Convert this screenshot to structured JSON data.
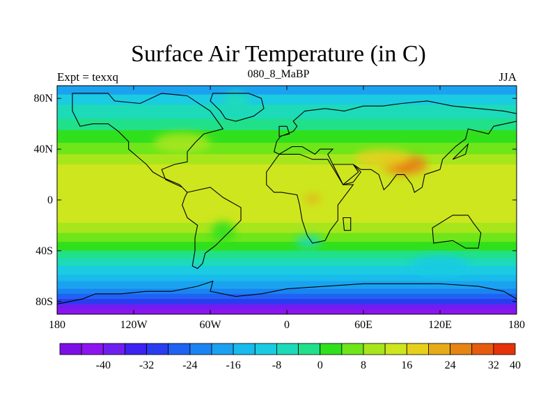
{
  "title": "Surface Air Temperature (in C)",
  "left_string": "Expt = texxq",
  "center_string": "080_8_MaBP",
  "right_string": "JJA",
  "map": {
    "projection": "cylindrical equidistant",
    "lon_range": [
      -180,
      180
    ],
    "lat_range": [
      -90,
      90
    ],
    "lon_ticks": [
      {
        "value": -180,
        "label": "180"
      },
      {
        "value": -120,
        "label": "120W"
      },
      {
        "value": -60,
        "label": "60W"
      },
      {
        "value": 0,
        "label": "0"
      },
      {
        "value": 60,
        "label": "60E"
      },
      {
        "value": 120,
        "label": "120E"
      },
      {
        "value": 180,
        "label": "180"
      }
    ],
    "lat_ticks": [
      {
        "value": 80,
        "label": "80N"
      },
      {
        "value": 40,
        "label": "40N"
      },
      {
        "value": 0,
        "label": "0"
      },
      {
        "value": -40,
        "label": "40S"
      },
      {
        "value": -80,
        "label": "80S"
      }
    ],
    "zonal_bands": [
      {
        "lat_from": 90,
        "lat_to": 83,
        "level": 7
      },
      {
        "lat_from": 83,
        "lat_to": 75,
        "level": 9
      },
      {
        "lat_from": 75,
        "lat_to": 64,
        "level": 10
      },
      {
        "lat_from": 64,
        "lat_to": 55,
        "level": 11
      },
      {
        "lat_from": 55,
        "lat_to": 45,
        "level": 12
      },
      {
        "lat_from": 45,
        "lat_to": 36,
        "level": 13
      },
      {
        "lat_from": 36,
        "lat_to": 28,
        "level": 14
      },
      {
        "lat_from": 28,
        "lat_to": -18,
        "level": 15
      },
      {
        "lat_from": -18,
        "lat_to": -26,
        "level": 14
      },
      {
        "lat_from": -26,
        "lat_to": -33,
        "level": 13
      },
      {
        "lat_from": -33,
        "lat_to": -40,
        "level": 12
      },
      {
        "lat_from": -40,
        "lat_to": -46,
        "level": 11
      },
      {
        "lat_from": -46,
        "lat_to": -52,
        "level": 10
      },
      {
        "lat_from": -52,
        "lat_to": -59,
        "level": 9
      },
      {
        "lat_from": -59,
        "lat_to": -64,
        "level": 8
      },
      {
        "lat_from": -64,
        "lat_to": -70,
        "level": 7
      },
      {
        "lat_from": -70,
        "lat_to": -74,
        "level": 6
      },
      {
        "lat_from": -74,
        "lat_to": -78,
        "level": 5
      },
      {
        "lat_from": -78,
        "lat_to": -82,
        "level": 4
      },
      {
        "lat_from": -82,
        "lat_to": -86,
        "level": 2
      },
      {
        "lat_from": -86,
        "lat_to": -90,
        "level": 1
      }
    ],
    "warm_regions": [
      {
        "name": "south-asia-hot",
        "lon": 92,
        "lat": 28,
        "rlon": 18,
        "rlat": 8,
        "level": 18
      },
      {
        "name": "south-asia-core",
        "lon": 90,
        "lat": 28,
        "rlon": 8,
        "rlat": 4,
        "level": 19
      },
      {
        "name": "africa-hot",
        "lon": 20,
        "lat": 1,
        "rlon": 6,
        "rlat": 3,
        "level": 17
      },
      {
        "name": "asia-interior",
        "lon": 75,
        "lat": 33,
        "rlon": 22,
        "rlat": 7,
        "level": 16
      },
      {
        "name": "n-america-warm",
        "lon": -82,
        "lat": 45,
        "rlon": 22,
        "rlat": 8,
        "level": 14
      },
      {
        "name": "s-america-cool",
        "lon": -50,
        "lat": -25,
        "rlon": 9,
        "rlat": 8,
        "level": 12
      },
      {
        "name": "africa-south-cool",
        "lon": 17,
        "lat": -33,
        "rlon": 10,
        "rlat": 5,
        "level": 10
      },
      {
        "name": "australia-cool",
        "lon": 120,
        "lat": -52,
        "rlon": 23,
        "rlat": 8,
        "level": 9
      },
      {
        "name": "greenland-cold",
        "lon": -40,
        "lat": 78,
        "rlon": 10,
        "rlat": 7,
        "level": 10
      }
    ],
    "continents": [
      {
        "name": "north-america",
        "points": [
          [
            -168,
            84
          ],
          [
            -140,
            84
          ],
          [
            -135,
            78
          ],
          [
            -115,
            76
          ],
          [
            -98,
            84
          ],
          [
            -78,
            82
          ],
          [
            -60,
            70
          ],
          [
            -50,
            56
          ],
          [
            -65,
            52
          ],
          [
            -72,
            45
          ],
          [
            -78,
            38
          ],
          [
            -78,
            30
          ],
          [
            -88,
            28
          ],
          [
            -98,
            24
          ],
          [
            -95,
            16
          ],
          [
            -82,
            10
          ],
          [
            -78,
            6
          ],
          [
            -84,
            12
          ],
          [
            -98,
            18
          ],
          [
            -105,
            22
          ],
          [
            -110,
            28
          ],
          [
            -117,
            34
          ],
          [
            -124,
            40
          ],
          [
            -124,
            46
          ],
          [
            -132,
            54
          ],
          [
            -140,
            60
          ],
          [
            -152,
            60
          ],
          [
            -162,
            58
          ],
          [
            -165,
            64
          ],
          [
            -168,
            70
          ]
        ]
      },
      {
        "name": "greenland",
        "points": [
          [
            -58,
            84
          ],
          [
            -30,
            84
          ],
          [
            -20,
            80
          ],
          [
            -18,
            72
          ],
          [
            -26,
            66
          ],
          [
            -40,
            62
          ],
          [
            -48,
            64
          ],
          [
            -52,
            70
          ],
          [
            -60,
            78
          ]
        ]
      },
      {
        "name": "south-america",
        "points": [
          [
            -78,
            6
          ],
          [
            -60,
            10
          ],
          [
            -50,
            2
          ],
          [
            -36,
            -6
          ],
          [
            -36,
            -16
          ],
          [
            -42,
            -22
          ],
          [
            -48,
            -28
          ],
          [
            -56,
            -36
          ],
          [
            -64,
            -42
          ],
          [
            -66,
            -50
          ],
          [
            -70,
            -54
          ],
          [
            -74,
            -52
          ],
          [
            -72,
            -40
          ],
          [
            -72,
            -30
          ],
          [
            -70,
            -20
          ],
          [
            -78,
            -14
          ],
          [
            -82,
            -4
          ],
          [
            -80,
            2
          ]
        ]
      },
      {
        "name": "eurasia",
        "points": [
          [
            -10,
            38
          ],
          [
            -8,
            46
          ],
          [
            -5,
            50
          ],
          [
            5,
            54
          ],
          [
            8,
            58
          ],
          [
            5,
            62
          ],
          [
            14,
            70
          ],
          [
            30,
            72
          ],
          [
            45,
            70
          ],
          [
            60,
            74
          ],
          [
            75,
            74
          ],
          [
            90,
            76
          ],
          [
            110,
            78
          ],
          [
            130,
            74
          ],
          [
            150,
            72
          ],
          [
            170,
            70
          ],
          [
            180,
            68
          ],
          [
            180,
            62
          ],
          [
            162,
            58
          ],
          [
            158,
            52
          ],
          [
            142,
            56
          ],
          [
            140,
            48
          ],
          [
            132,
            42
          ],
          [
            126,
            36
          ],
          [
            122,
            32
          ],
          [
            120,
            24
          ],
          [
            108,
            20
          ],
          [
            106,
            10
          ],
          [
            100,
            6
          ],
          [
            98,
            12
          ],
          [
            92,
            20
          ],
          [
            86,
            20
          ],
          [
            80,
            12
          ],
          [
            76,
            8
          ],
          [
            72,
            20
          ],
          [
            66,
            24
          ],
          [
            58,
            24
          ],
          [
            52,
            28
          ],
          [
            56,
            22
          ],
          [
            44,
            12
          ],
          [
            36,
            28
          ],
          [
            32,
            36
          ],
          [
            36,
            40
          ],
          [
            26,
            40
          ],
          [
            22,
            36
          ],
          [
            12,
            42
          ],
          [
            4,
            42
          ],
          [
            -6,
            36
          ]
        ]
      },
      {
        "name": "africa",
        "points": [
          [
            -16,
            22
          ],
          [
            -6,
            36
          ],
          [
            10,
            36
          ],
          [
            20,
            32
          ],
          [
            32,
            32
          ],
          [
            38,
            22
          ],
          [
            44,
            12
          ],
          [
            52,
            12
          ],
          [
            40,
            -4
          ],
          [
            40,
            -16
          ],
          [
            34,
            -24
          ],
          [
            30,
            -32
          ],
          [
            20,
            -34
          ],
          [
            16,
            -28
          ],
          [
            12,
            -16
          ],
          [
            10,
            -4
          ],
          [
            8,
            4
          ],
          [
            -4,
            6
          ],
          [
            -10,
            6
          ],
          [
            -16,
            12
          ]
        ]
      },
      {
        "name": "madagascar",
        "points": [
          [
            44,
            -14
          ],
          [
            50,
            -14
          ],
          [
            50,
            -24
          ],
          [
            45,
            -24
          ]
        ]
      },
      {
        "name": "arabia",
        "points": [
          [
            36,
            28
          ],
          [
            44,
            12
          ],
          [
            52,
            14
          ],
          [
            58,
            22
          ],
          [
            52,
            28
          ]
        ]
      },
      {
        "name": "australia",
        "points": [
          [
            114,
            -22
          ],
          [
            130,
            -12
          ],
          [
            142,
            -12
          ],
          [
            146,
            -18
          ],
          [
            152,
            -26
          ],
          [
            150,
            -38
          ],
          [
            140,
            -38
          ],
          [
            130,
            -32
          ],
          [
            115,
            -34
          ]
        ]
      },
      {
        "name": "uk",
        "points": [
          [
            -6,
            50
          ],
          [
            2,
            52
          ],
          [
            0,
            58
          ],
          [
            -6,
            58
          ]
        ]
      },
      {
        "name": "japan",
        "points": [
          [
            130,
            32
          ],
          [
            140,
            36
          ],
          [
            142,
            44
          ],
          [
            138,
            40
          ]
        ]
      },
      {
        "name": "antarctica",
        "points": [
          [
            -180,
            -82
          ],
          [
            -160,
            -78
          ],
          [
            -150,
            -74
          ],
          [
            -130,
            -74
          ],
          [
            -110,
            -72
          ],
          [
            -90,
            -72
          ],
          [
            -70,
            -68
          ],
          [
            -58,
            -64
          ],
          [
            -60,
            -72
          ],
          [
            -40,
            -76
          ],
          [
            -20,
            -74
          ],
          [
            0,
            -70
          ],
          [
            30,
            -68
          ],
          [
            60,
            -66
          ],
          [
            90,
            -66
          ],
          [
            120,
            -66
          ],
          [
            150,
            -68
          ],
          [
            170,
            -72
          ],
          [
            180,
            -78
          ],
          [
            180,
            -90
          ],
          [
            -180,
            -90
          ]
        ]
      }
    ]
  },
  "colorbar": {
    "colors": [
      "#7b10e4",
      "#8c14ef",
      "#6e1ff0",
      "#3d22f0",
      "#2a3cf0",
      "#2062f2",
      "#1a84f2",
      "#1aa2f0",
      "#19baec",
      "#1bcbe2",
      "#1ddab9",
      "#21e08a",
      "#31e01d",
      "#6ee61a",
      "#a8e61c",
      "#cde61e",
      "#e6d01c",
      "#e6ab18",
      "#e68414",
      "#e65c0f",
      "#e63209"
    ],
    "labels": [
      "-40",
      "-32",
      "-24",
      "-16",
      "-8",
      "0",
      "8",
      "16",
      "24",
      "32",
      "40"
    ],
    "label_boundaries": [
      2,
      4,
      6,
      8,
      10,
      12,
      14,
      16,
      18,
      20,
      21
    ]
  },
  "font_note_color": "#000000"
}
